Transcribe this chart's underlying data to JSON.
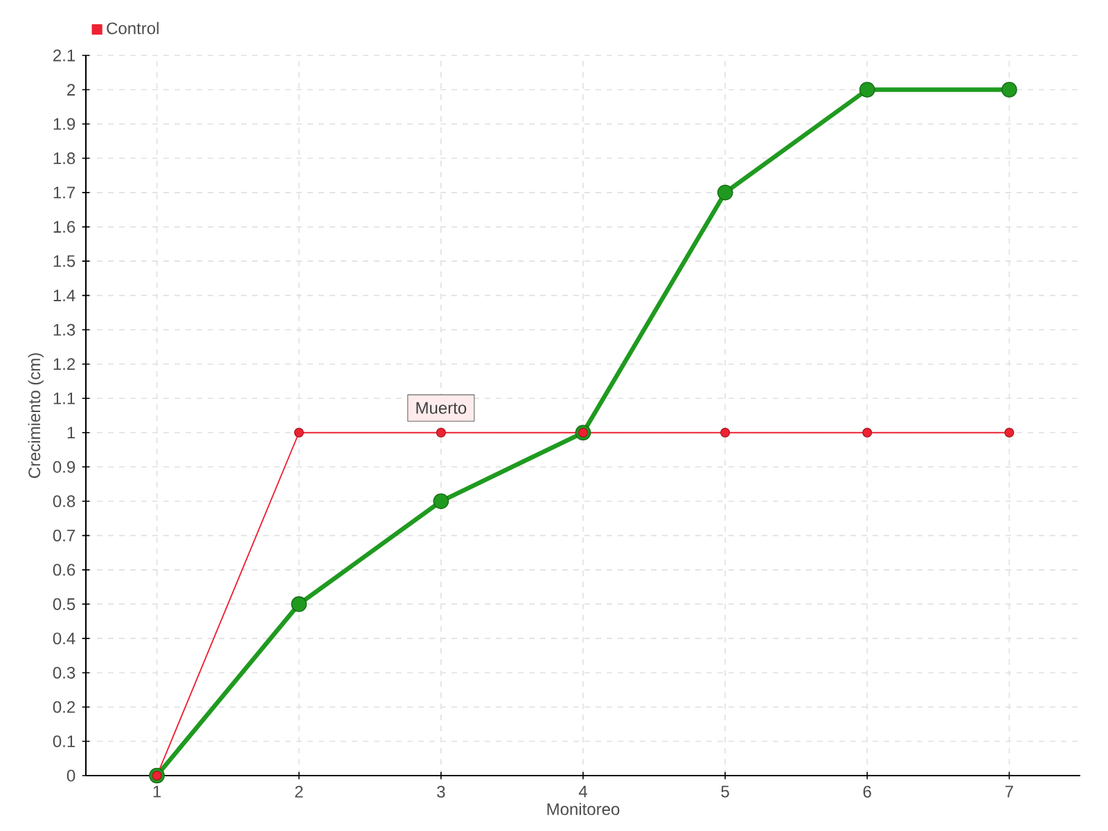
{
  "chart_data": {
    "type": "line",
    "xlabel": "Monitoreo",
    "ylabel": "Crecimiento (cm)",
    "categories": [
      "1",
      "2",
      "3",
      "4",
      "5",
      "6",
      "7"
    ],
    "series": [
      {
        "color": "#1f9a1f",
        "values": [
          0,
          0.5,
          0.8,
          1,
          1.7,
          2,
          2
        ]
      },
      {
        "name": "Control",
        "color": "#ee2233",
        "values": [
          0,
          1,
          1,
          1,
          1,
          1,
          1
        ]
      }
    ],
    "ylim": [
      0,
      2.1
    ],
    "yticks": [
      0,
      0.1,
      0.2,
      0.3,
      0.4,
      0.5,
      0.6,
      0.7,
      0.8,
      0.9,
      1,
      1.1,
      1.2,
      1.3,
      1.4,
      1.5,
      1.6,
      1.7,
      1.8,
      1.9,
      2,
      2.1
    ],
    "annotations": [
      {
        "text": "Muerto",
        "x": "3",
        "y": 1
      }
    ],
    "grid": true,
    "legend": "top left",
    "marker": "circle",
    "line_style": "solid"
  }
}
